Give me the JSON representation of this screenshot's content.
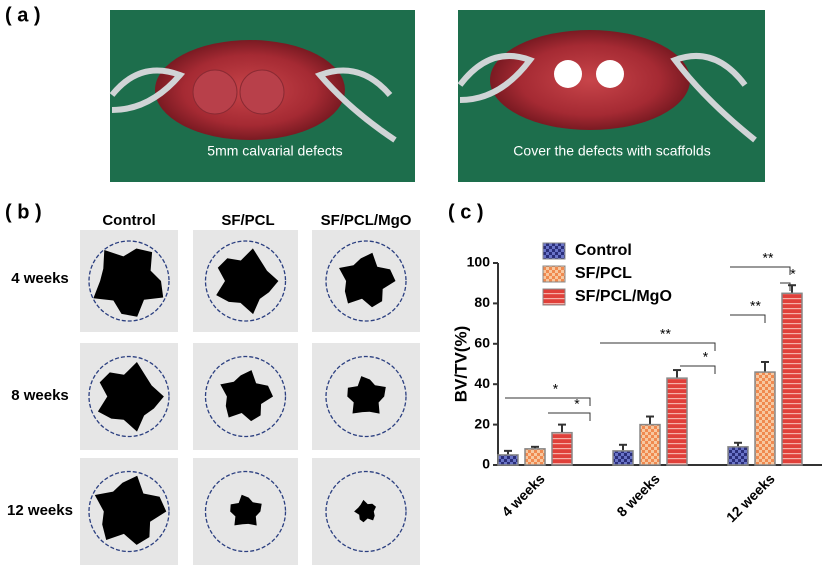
{
  "panels": {
    "a": {
      "label": "( a )",
      "photos": [
        {
          "caption": "5mm calvarial defects"
        },
        {
          "caption": "Cover the defects with scaffolds"
        }
      ]
    },
    "b": {
      "label": "( b )",
      "columns": [
        "Control",
        "SF/PCL",
        "SF/PCL/MgO"
      ],
      "rows": [
        "4 weeks",
        "8 weeks",
        "12 weeks"
      ]
    },
    "c": {
      "label": "( c )"
    }
  },
  "chart_data": {
    "type": "bar",
    "y_label": "BV/TV(%)",
    "categories": [
      "4 weeks",
      "8 weeks",
      "12 weeks"
    ],
    "series": [
      {
        "name": "Control",
        "color": "#2b2f7a",
        "values": [
          5,
          7,
          9
        ],
        "errors": [
          2,
          3,
          2
        ]
      },
      {
        "name": "SF/PCL",
        "color": "#f0a070",
        "values": [
          8,
          20,
          46
        ],
        "errors": [
          1,
          4,
          5
        ]
      },
      {
        "name": "SF/PCL/MgO",
        "color": "#e0403a",
        "values": [
          16,
          43,
          85
        ],
        "errors": [
          4,
          4,
          4
        ]
      }
    ],
    "significance": [
      [
        "*",
        "*"
      ],
      [
        "**",
        "*"
      ],
      [
        "**",
        "*",
        "**"
      ]
    ],
    "ylim": [
      0,
      100
    ],
    "yticks": [
      0,
      20,
      40,
      60,
      80,
      100
    ],
    "grid": false,
    "legend": "upper left"
  }
}
